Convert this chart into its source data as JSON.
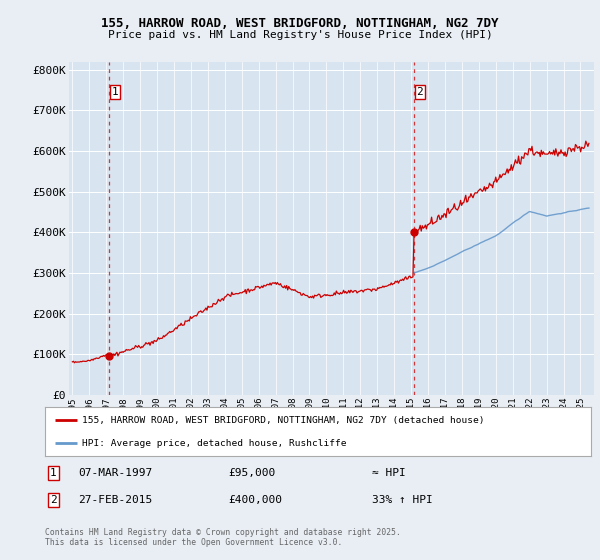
{
  "title1": "155, HARROW ROAD, WEST BRIDGFORD, NOTTINGHAM, NG2 7DY",
  "title2": "Price paid vs. HM Land Registry's House Price Index (HPI)",
  "ylabel_ticks": [
    "£0",
    "£100K",
    "£200K",
    "£300K",
    "£400K",
    "£500K",
    "£600K",
    "£700K",
    "£800K"
  ],
  "ytick_values": [
    0,
    100000,
    200000,
    300000,
    400000,
    500000,
    600000,
    700000,
    800000
  ],
  "ylim": [
    0,
    820000
  ],
  "xlim_start": 1994.8,
  "xlim_end": 2025.8,
  "purchase1_x": 1997.18,
  "purchase1_y": 95000,
  "purchase2_x": 2015.15,
  "purchase2_y": 400000,
  "legend_line1": "155, HARROW ROAD, WEST BRIDGFORD, NOTTINGHAM, NG2 7DY (detached house)",
  "legend_line2": "HPI: Average price, detached house, Rushcliffe",
  "annotation1_date": "07-MAR-1997",
  "annotation1_price": "£95,000",
  "annotation1_hpi": "≈ HPI",
  "annotation2_date": "27-FEB-2015",
  "annotation2_price": "£400,000",
  "annotation2_hpi": "33% ↑ HPI",
  "footnote": "Contains HM Land Registry data © Crown copyright and database right 2025.\nThis data is licensed under the Open Government Licence v3.0.",
  "price_color": "#cc0000",
  "hpi_color": "#6699cc",
  "bg_color": "#e8eef4",
  "plot_bg": "#d8e4f0",
  "grid_color": "#ffffff",
  "dashed_color": "#cc0000",
  "label_box_edge": "#cc0000"
}
